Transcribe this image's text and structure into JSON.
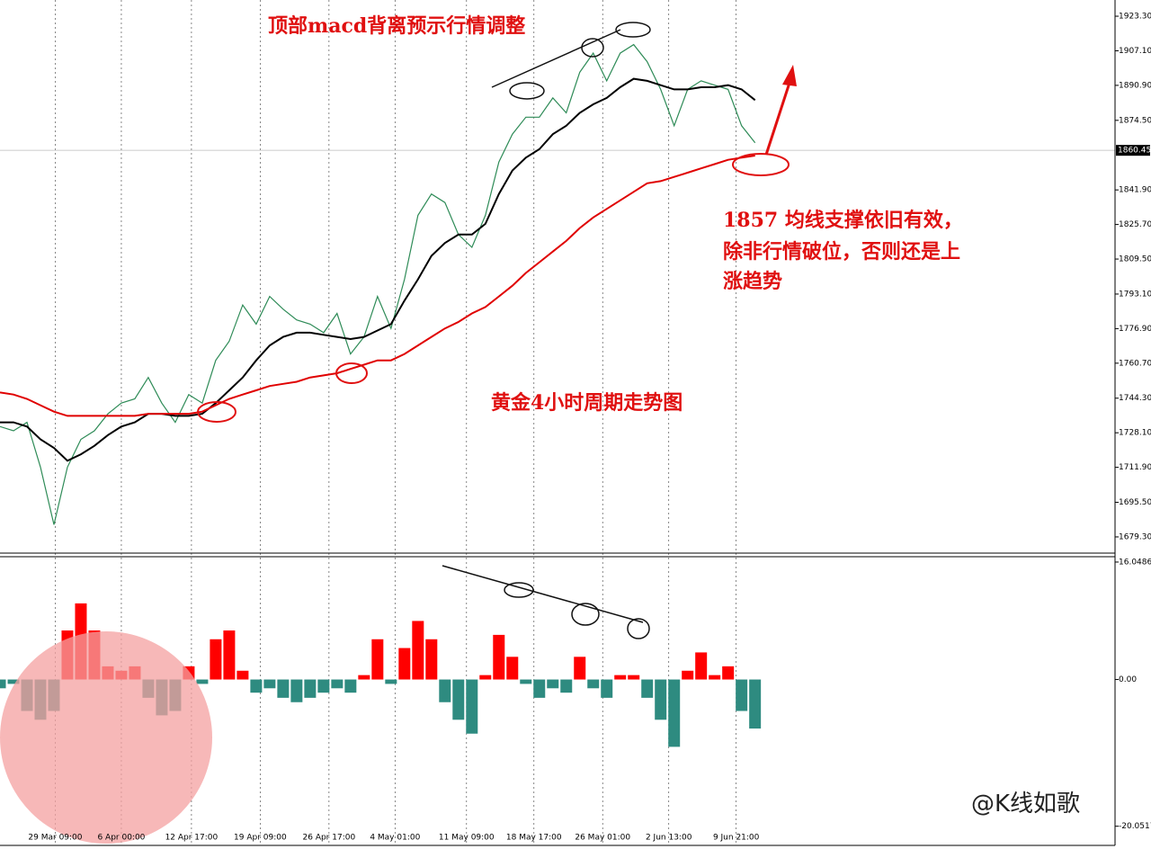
{
  "chart_data": [
    {
      "type": "line",
      "title": "黄金4小时周期走势图",
      "annotations": [
        "顶部macd背离预示行情调整",
        "1857 均线支撑依旧有效，",
        "除非行情破位，否则还是上",
        "涨趋势"
      ],
      "watermark": "@K线如歌",
      "x": [
        0,
        1,
        2,
        3,
        4,
        5,
        6,
        7,
        8,
        9,
        10,
        11,
        12,
        13,
        14,
        15,
        16,
        17,
        18,
        19,
        20,
        21,
        22,
        23,
        24,
        25,
        26,
        27,
        28,
        29,
        30,
        31,
        32,
        33,
        34,
        35,
        36,
        37,
        38,
        39,
        40,
        41,
        42,
        43,
        44,
        45,
        46,
        47,
        48,
        49,
        50,
        51,
        52,
        53,
        54,
        55,
        56
      ],
      "xlim": [
        0,
        82.7
      ],
      "xticks": [
        {
          "value": 4.1,
          "label": "29 Mar 09:00"
        },
        {
          "value": 9.0,
          "label": "6 Apr 00:00"
        },
        {
          "value": 14.2,
          "label": "12 Apr 17:00"
        },
        {
          "value": 19.3,
          "label": "19 Apr 09:00"
        },
        {
          "value": 24.4,
          "label": "26 Apr 17:00"
        },
        {
          "value": 29.3,
          "label": "4 May 01:00"
        },
        {
          "value": 34.6,
          "label": "11 May 09:00"
        },
        {
          "value": 39.6,
          "label": "18 May 17:00"
        },
        {
          "value": 44.7,
          "label": "26 May 01:00"
        },
        {
          "value": 49.6,
          "label": "2 Jun 13:00"
        },
        {
          "value": 54.6,
          "label": "9 Jun 21:00"
        }
      ],
      "ylim": [
        1671.7,
        1930.9
      ],
      "yticks": [
        {
          "value": 1923.3,
          "label": "1923.30"
        },
        {
          "value": 1907.1,
          "label": "1907.10"
        },
        {
          "value": 1890.9,
          "label": "1890.90"
        },
        {
          "value": 1874.5,
          "label": "1874.50"
        },
        {
          "value": 1841.9,
          "label": "1841.90"
        },
        {
          "value": 1825.7,
          "label": "1825.70"
        },
        {
          "value": 1809.5,
          "label": "1809.50"
        },
        {
          "value": 1793.1,
          "label": "1793.10"
        },
        {
          "value": 1776.9,
          "label": "1776.90"
        },
        {
          "value": 1760.7,
          "label": "1760.70"
        },
        {
          "value": 1744.3,
          "label": "1744.30"
        },
        {
          "value": 1728.1,
          "label": "1728.10"
        },
        {
          "value": 1711.9,
          "label": "1711.90"
        },
        {
          "value": 1695.5,
          "label": "1695.50"
        },
        {
          "value": 1679.3,
          "label": "1679.30"
        }
      ],
      "last_price": 1860.45,
      "series": [
        {
          "color": "#2e8b57",
          "values": [
            1731,
            1729,
            1733,
            1712,
            1685,
            1712,
            1725,
            1729,
            1737,
            1742,
            1744,
            1754,
            1742,
            1733,
            1746,
            1742,
            1762,
            1771,
            1788,
            1779,
            1792,
            1786,
            1781,
            1779,
            1775,
            1784,
            1765,
            1773,
            1792,
            1777,
            1800,
            1830,
            1840,
            1836,
            1821,
            1815,
            1830,
            1855,
            1868,
            1876,
            1876,
            1885,
            1878,
            1897,
            1906,
            1893,
            1906,
            1910,
            1902,
            1889,
            1872,
            1889,
            1893,
            1891,
            1889,
            1872,
            1864
          ]
        },
        {
          "color": "#000000",
          "values": [
            1733,
            1733,
            1731,
            1725,
            1721,
            1715,
            1718,
            1722,
            1727,
            1731,
            1733,
            1737,
            1737,
            1736,
            1736,
            1737,
            1742,
            1748,
            1754,
            1762,
            1769,
            1773,
            1775,
            1775,
            1774,
            1773,
            1772,
            1773,
            1776,
            1779,
            1790,
            1800,
            1811,
            1817,
            1821,
            1821,
            1826,
            1840,
            1851,
            1857,
            1861,
            1868,
            1872,
            1878,
            1882,
            1885,
            1890,
            1894,
            1893,
            1891,
            1889,
            1889,
            1890,
            1890,
            1891,
            1889,
            1884
          ]
        },
        {
          "color": "#e00000",
          "values": [
            1747,
            1746,
            1744,
            1741,
            1738,
            1736,
            1736,
            1736,
            1736,
            1736,
            1736,
            1737,
            1737,
            1737,
            1737,
            1738,
            1741,
            1744,
            1746,
            1748,
            1750,
            1751,
            1752,
            1754,
            1755,
            1756,
            1758,
            1760,
            1762,
            1762,
            1765,
            1769,
            1773,
            1777,
            1780,
            1784,
            1787,
            1792,
            1797,
            1803,
            1808,
            1813,
            1818,
            1824,
            1829,
            1833,
            1837,
            1841,
            1845,
            1846,
            1848,
            1850,
            1852,
            1854,
            1856,
            1857,
            1858
          ]
        }
      ]
    },
    {
      "type": "bar",
      "x": [
        0,
        1,
        2,
        3,
        4,
        5,
        6,
        7,
        8,
        9,
        10,
        11,
        12,
        13,
        14,
        15,
        16,
        17,
        18,
        19,
        20,
        21,
        22,
        23,
        24,
        25,
        26,
        27,
        28,
        29,
        30,
        31,
        32,
        33,
        34,
        35,
        36,
        37,
        38,
        39,
        40,
        41,
        42,
        43,
        44,
        45,
        46,
        47,
        48,
        49,
        50,
        51,
        52,
        53,
        54,
        55,
        56
      ],
      "xlim": [
        0,
        82.7
      ],
      "ylim": [
        -22.67,
        16.78
      ],
      "yticks": [
        16.0486,
        {
          "value": 0,
          "label": "0.00"
        },
        -20.0517
      ],
      "color": "#ff0000",
      "negative_color": "#2e8b80",
      "values": [
        -1.2,
        -0.6,
        -4.3,
        -5.5,
        -4.3,
        6.7,
        10.4,
        6.7,
        1.8,
        1.2,
        1.8,
        -2.5,
        -4.9,
        -4.3,
        1.8,
        -0.6,
        5.5,
        6.7,
        1.2,
        -1.8,
        -1.2,
        -2.5,
        -3.1,
        -2.5,
        -1.8,
        -1.2,
        -1.8,
        0.6,
        5.5,
        -0.6,
        4.3,
        8.0,
        5.5,
        -3.1,
        -5.5,
        -7.4,
        0.6,
        6.1,
        3.1,
        -0.6,
        -2.5,
        -1.2,
        -1.8,
        3.1,
        -1.2,
        -2.5,
        0.6,
        0.6,
        -2.5,
        -5.5,
        -9.2,
        1.2,
        3.7,
        0.6,
        1.8,
        -4.3,
        -6.7
      ]
    }
  ]
}
